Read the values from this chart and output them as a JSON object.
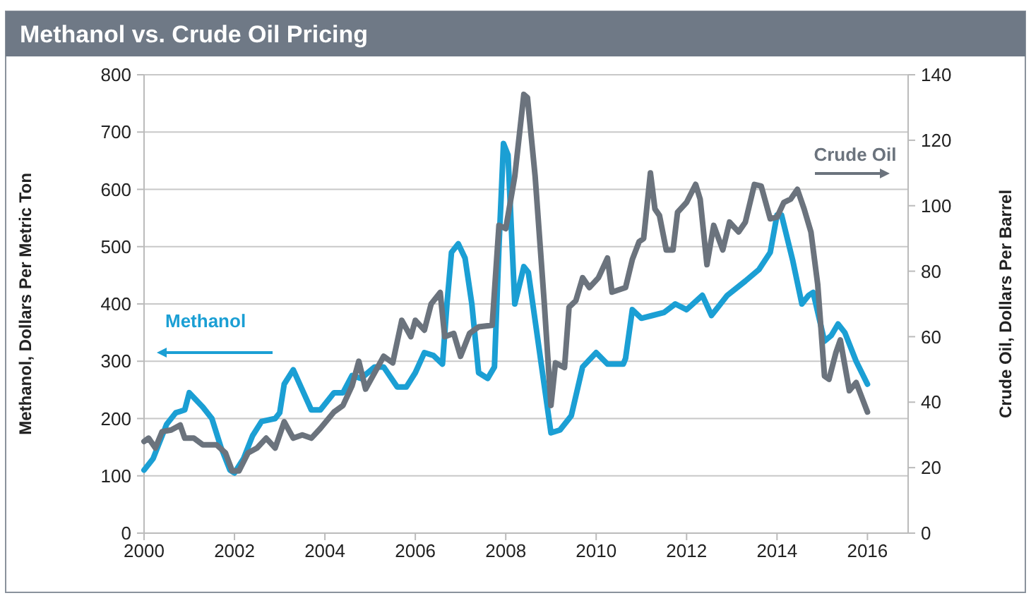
{
  "chart_data": {
    "type": "line",
    "title": "Methanol vs. Crude Oil Pricing",
    "ylabel": "Methanol, Dollars Per Metric Ton",
    "y2label": "Crude Oil, Dollars Per Barrel",
    "xlim": [
      2000,
      2016.9
    ],
    "xticks": [
      2000,
      2002,
      2004,
      2006,
      2008,
      2010,
      2012,
      2014,
      2016
    ],
    "ylim": [
      0,
      800
    ],
    "yticks": [
      0,
      100,
      200,
      300,
      400,
      500,
      600,
      700,
      800
    ],
    "y2lim": [
      0,
      140
    ],
    "y2ticks": [
      0,
      20,
      40,
      60,
      80,
      100,
      120,
      140
    ],
    "grid": "y",
    "line_style": "solid",
    "marker": "none",
    "series": [
      {
        "name": "Methanol",
        "color": "#1b9fd4",
        "x": [
          2000,
          2000.2,
          2000.5,
          2000.7,
          2000.9,
          2001,
          2001.3,
          2001.5,
          2001.7,
          2001.9,
          2002,
          2002.2,
          2002.4,
          2002.6,
          2002.9,
          2003,
          2003.1,
          2003.3,
          2003.5,
          2003.7,
          2003.9,
          2004.2,
          2004.4,
          2004.6,
          2004.8,
          2005.1,
          2005.3,
          2005.6,
          2005.8,
          2006,
          2006.2,
          2006.4,
          2006.6,
          2006.7,
          2006.8,
          2006.95,
          2007.1,
          2007.25,
          2007.4,
          2007.6,
          2007.75,
          2007.85,
          2007.95,
          2008.05,
          2008.2,
          2008.4,
          2008.5,
          2009,
          2009.2,
          2009.45,
          2009.7,
          2010,
          2010.25,
          2010.6,
          2010.65,
          2010.8,
          2011,
          2011.25,
          2011.5,
          2011.75,
          2012,
          2012.35,
          2012.55,
          2012.9,
          2013.3,
          2013.6,
          2013.85,
          2014,
          2014.1,
          2014.35,
          2014.55,
          2014.7,
          2014.8,
          2015.05,
          2015.2,
          2015.35,
          2015.5,
          2015.75,
          2016
        ],
        "values": [
          110,
          130,
          190,
          210,
          215,
          245,
          220,
          200,
          150,
          110,
          105,
          130,
          170,
          195,
          200,
          210,
          260,
          285,
          250,
          215,
          215,
          245,
          245,
          275,
          270,
          290,
          290,
          255,
          255,
          280,
          315,
          310,
          295,
          400,
          490,
          505,
          480,
          400,
          280,
          270,
          290,
          500,
          680,
          660,
          400,
          465,
          455,
          175,
          180,
          205,
          290,
          315,
          295,
          295,
          305,
          390,
          375,
          380,
          385,
          400,
          390,
          415,
          380,
          415,
          440,
          460,
          490,
          555,
          555,
          475,
          400,
          415,
          420,
          335,
          345,
          365,
          350,
          300,
          260
        ]
      },
      {
        "name": "Crude Oil",
        "color": "#6b737d",
        "axis": "y2",
        "x": [
          2000,
          2000.1,
          2000.25,
          2000.4,
          2000.6,
          2000.8,
          2000.9,
          2001.1,
          2001.3,
          2001.6,
          2001.8,
          2001.95,
          2002.1,
          2002.3,
          2002.5,
          2002.7,
          2002.9,
          2003.1,
          2003.3,
          2003.5,
          2003.7,
          2003.9,
          2004.2,
          2004.4,
          2004.6,
          2004.75,
          2004.9,
          2005.1,
          2005.3,
          2005.5,
          2005.7,
          2005.9,
          2006,
          2006.2,
          2006.35,
          2006.55,
          2006.65,
          2006.85,
          2007,
          2007.2,
          2007.4,
          2007.7,
          2007.85,
          2008,
          2008.2,
          2008.4,
          2008.48,
          2008.65,
          2008.85,
          2009,
          2009.1,
          2009.3,
          2009.4,
          2009.55,
          2009.7,
          2009.85,
          2010.05,
          2010.25,
          2010.35,
          2010.65,
          2010.8,
          2010.95,
          2011.05,
          2011.2,
          2011.3,
          2011.4,
          2011.55,
          2011.7,
          2011.8,
          2012,
          2012.2,
          2012.3,
          2012.45,
          2012.6,
          2012.8,
          2012.95,
          2013.15,
          2013.3,
          2013.5,
          2013.65,
          2013.85,
          2014,
          2014.15,
          2014.3,
          2014.45,
          2014.6,
          2014.75,
          2014.9,
          2015.05,
          2015.15,
          2015.3,
          2015.4,
          2015.6,
          2015.75,
          2016
        ],
        "values": [
          28,
          29,
          26,
          31,
          31.5,
          33,
          29,
          29,
          27,
          27,
          24.5,
          19,
          19,
          24.5,
          26,
          29,
          26,
          34,
          29,
          30,
          29,
          32,
          37,
          39,
          45,
          52.5,
          44,
          49,
          54,
          52,
          65,
          60,
          65,
          62,
          70,
          73.5,
          60,
          61,
          54,
          61,
          63,
          63.5,
          94,
          93,
          109,
          134,
          133,
          109,
          70.7,
          39,
          52,
          50.6,
          69,
          71,
          78,
          75,
          78,
          84,
          73.6,
          75,
          83.6,
          89,
          90,
          110,
          99,
          97,
          86.5,
          86.5,
          98,
          101,
          106.5,
          102,
          82,
          94,
          86.5,
          95,
          92,
          95,
          106.5,
          106,
          96,
          96.5,
          101,
          102,
          105,
          99,
          92,
          76,
          48,
          47,
          55,
          59,
          43.5,
          46,
          37
        ]
      }
    ]
  }
}
